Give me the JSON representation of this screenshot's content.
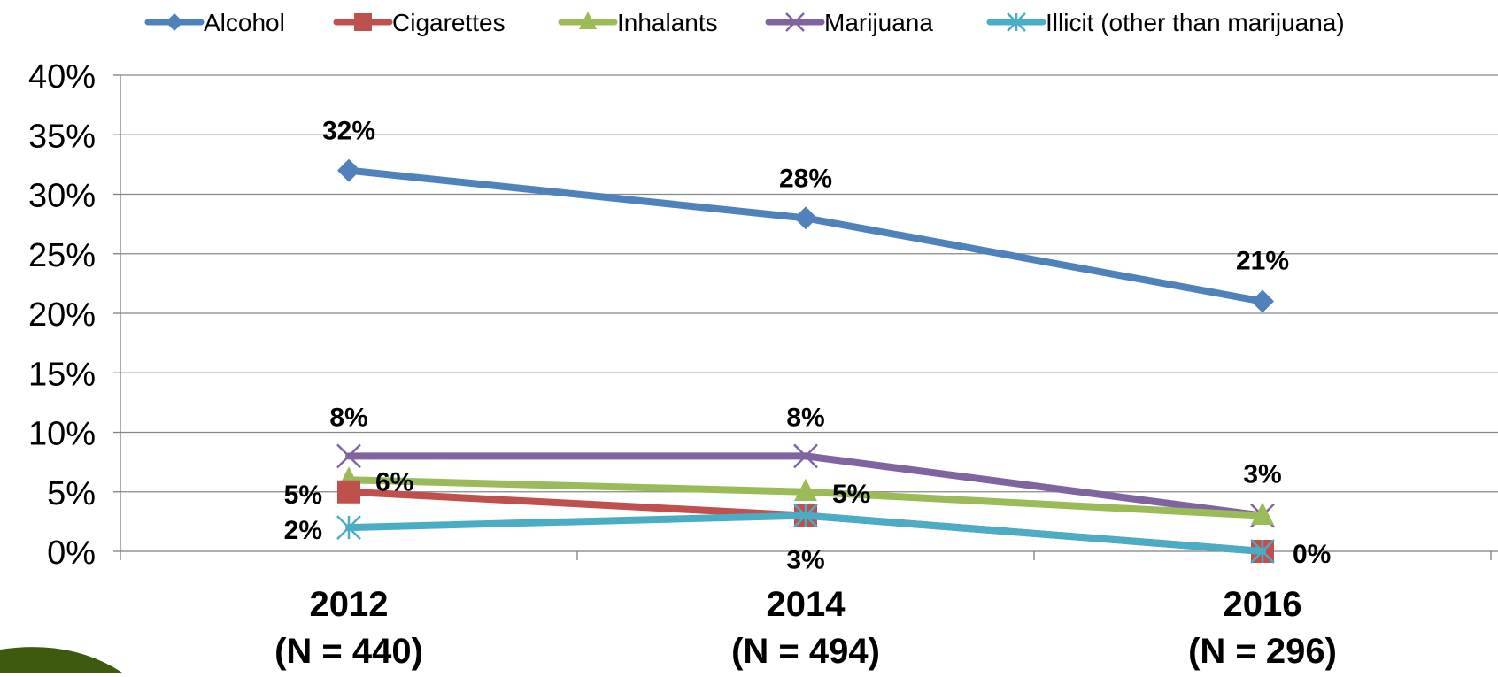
{
  "chart_data": {
    "type": "line",
    "categories": [
      "2012",
      "2014",
      "2016"
    ],
    "category_sublabels": [
      "(N = 440)",
      "(N = 494)",
      "(N = 296)"
    ],
    "ylim": [
      0,
      40
    ],
    "y_ticks": [
      "0%",
      "5%",
      "10%",
      "15%",
      "20%",
      "25%",
      "30%",
      "35%",
      "40%"
    ],
    "grid": true,
    "legend_position": "top",
    "series": [
      {
        "name": "Alcohol",
        "values": [
          32,
          28,
          21
        ],
        "color": "#4F81BD",
        "marker": "diamond",
        "data_labels": [
          "32%",
          "28%",
          "21%"
        ]
      },
      {
        "name": "Cigarettes",
        "values": [
          5,
          3,
          0
        ],
        "color": "#C0504D",
        "marker": "square",
        "data_labels": [
          "5%",
          "",
          "0%"
        ]
      },
      {
        "name": "Inhalants",
        "values": [
          6,
          5,
          3
        ],
        "color": "#9BBB59",
        "marker": "triangle",
        "data_labels": [
          "6%",
          "5%",
          ""
        ]
      },
      {
        "name": "Marijuana",
        "values": [
          8,
          8,
          3
        ],
        "color": "#8064A2",
        "marker": "x",
        "data_labels": [
          "8%",
          "8%",
          "3%"
        ]
      },
      {
        "name": "Illicit (other than marijuana)",
        "values": [
          2,
          3,
          0
        ],
        "color": "#4BACC6",
        "marker": "asterisk",
        "data_labels": [
          "2%",
          "3%",
          ""
        ]
      }
    ]
  },
  "decor": {
    "corner_swoosh_color": "#3D5A0E"
  }
}
